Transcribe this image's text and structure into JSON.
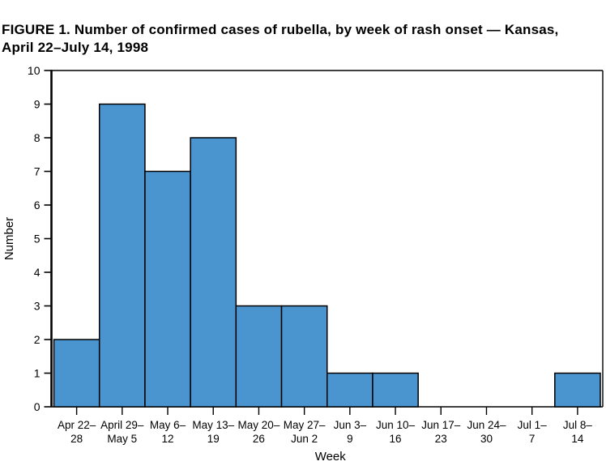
{
  "figure": {
    "title_line1": "FIGURE 1. Number of confirmed cases of rubella, by week of rash onset — Kansas,",
    "title_line2": "April 22–July 14, 1998"
  },
  "chart_data": {
    "type": "bar",
    "title": "FIGURE 1. Number of confirmed cases of rubella, by week of rash onset — Kansas, April 22–July 14, 1998",
    "categories": [
      [
        "Apr 22–",
        "28"
      ],
      [
        "April 29–",
        "May 5"
      ],
      [
        "May 6–",
        "12"
      ],
      [
        "May 13–",
        "19"
      ],
      [
        "May 20–",
        "26"
      ],
      [
        "May 27–",
        "Jun 2"
      ],
      [
        "Jun 3–",
        "9"
      ],
      [
        "Jun 10–",
        "16"
      ],
      [
        "Jun 17–",
        "23"
      ],
      [
        "Jun 24–",
        "30"
      ],
      [
        "Jul 1–",
        "7"
      ],
      [
        "Jul 8–",
        "14"
      ]
    ],
    "values": [
      2,
      9,
      7,
      8,
      3,
      3,
      1,
      1,
      0,
      0,
      0,
      1
    ],
    "xlabel": "Week",
    "ylabel": "Number",
    "ylim": [
      0,
      10
    ],
    "ytick_step": 1,
    "grid": false,
    "legend": "none",
    "bar_fill": "#4A95D0",
    "bar_stroke": "#000000",
    "axis_color": "#000000"
  }
}
